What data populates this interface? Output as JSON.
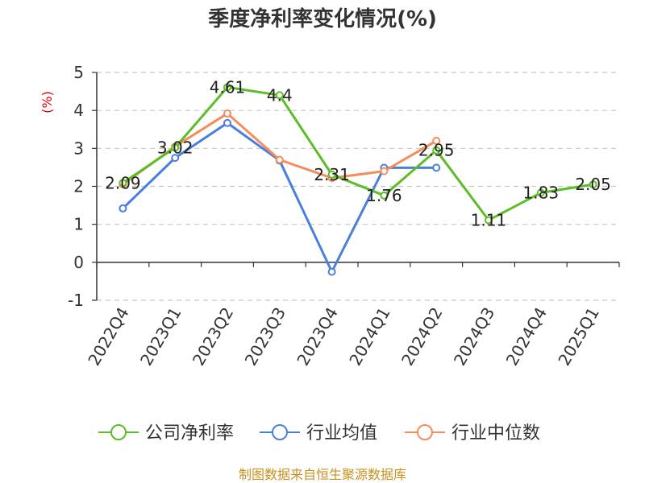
{
  "chart_data": {
    "type": "line",
    "title": "季度净利率变化情况(%)",
    "ylabel": "(%)",
    "ylim": [
      -1,
      5
    ],
    "yticks": [
      -1,
      0,
      1,
      2,
      3,
      4,
      5
    ],
    "ytick_labels": [
      "-1",
      "0",
      "1",
      "2",
      "3",
      "4",
      "5"
    ],
    "grid": true,
    "legend_position": "bottom",
    "categories": [
      "2022Q4",
      "2023Q1",
      "2023Q2",
      "2023Q3",
      "2023Q4",
      "2024Q1",
      "2024Q2",
      "2024Q3",
      "2024Q4",
      "2025Q1"
    ],
    "series": [
      {
        "name": "公司净利率",
        "color": "#5cbd27",
        "values": [
          2.09,
          3.02,
          4.61,
          4.4,
          2.31,
          1.76,
          2.95,
          1.11,
          1.83,
          2.05
        ],
        "data_labels": [
          "2.09",
          "3.02",
          "4.61",
          "4.4",
          "2.31",
          "1.76",
          "2.95",
          "1.11",
          "1.83",
          "2.05"
        ]
      },
      {
        "name": "行业均值",
        "color": "#4a7fdc",
        "values": [
          1.42,
          2.75,
          3.67,
          2.68,
          -0.25,
          2.49,
          2.49,
          null,
          null,
          null
        ]
      },
      {
        "name": "行业中位数",
        "color": "#f48c5b",
        "values": [
          2.05,
          3.05,
          3.92,
          2.7,
          2.22,
          2.4,
          3.2,
          null,
          null,
          null
        ]
      }
    ],
    "source": "制图数据来自恒生聚源数据库"
  }
}
